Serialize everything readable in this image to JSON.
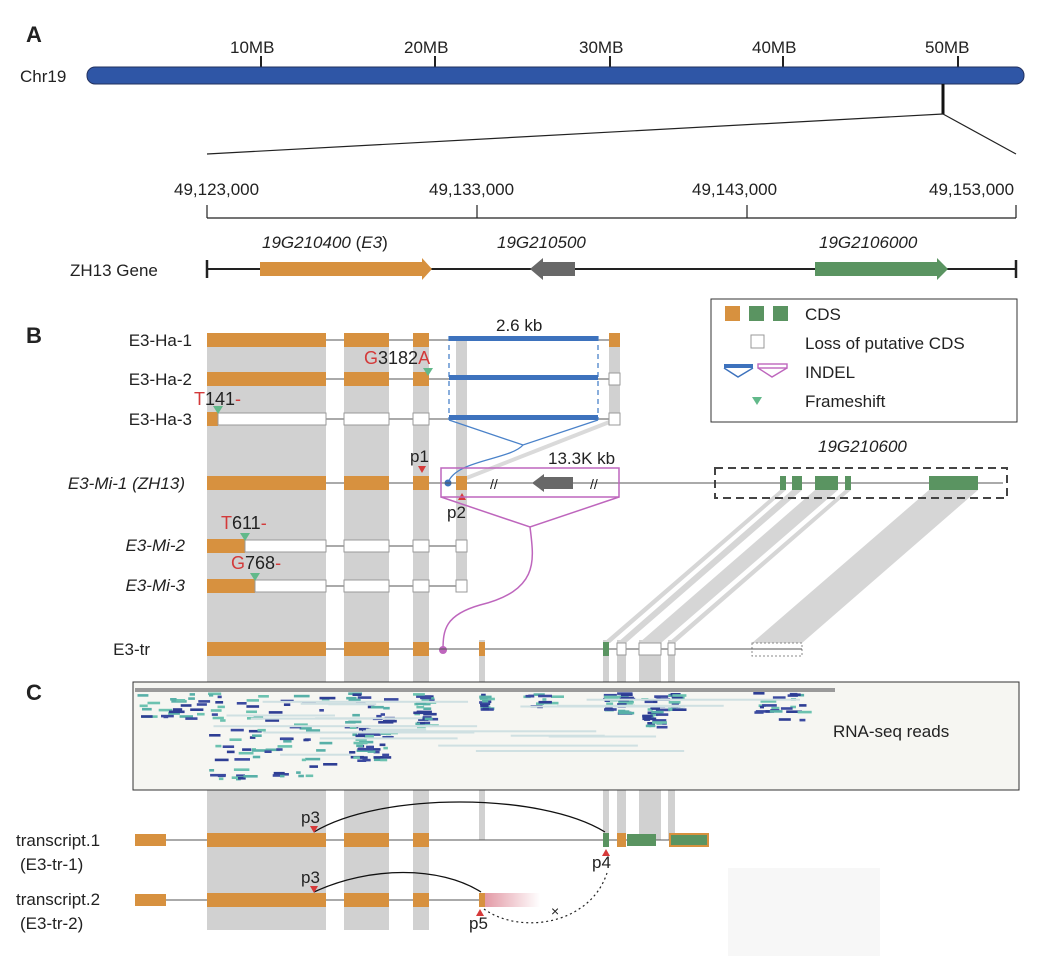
{
  "panels": {
    "a": "A",
    "b": "B",
    "c": "C"
  },
  "chromosome": {
    "name": "Chr19",
    "ticks": [
      "10MB",
      "20MB",
      "30MB",
      "40MB",
      "50MB"
    ]
  },
  "region": {
    "ticks": [
      "49,123,000",
      "49,133,000",
      "49,143,000",
      "49,153,000"
    ]
  },
  "genes": {
    "row_label": "ZH13 Gene",
    "e3_id": "19G210400",
    "e3_paren_open": " (",
    "e3_name": "E3",
    "e3_paren_close": ")",
    "g2": "19G210500",
    "g3": "19G2106000"
  },
  "haplotypes": [
    {
      "label": "E3-Ha-1",
      "italic": false,
      "pink": false
    },
    {
      "label": "E3-Ha-2",
      "italic": false,
      "pink": false
    },
    {
      "label": "E3-Ha-3",
      "italic": false,
      "pink": false
    },
    {
      "label": "E3-Mi-1 (ZH13)",
      "italic": true,
      "pink": true
    },
    {
      "label": "E3-Mi-2",
      "italic": true,
      "pink": false
    },
    {
      "label": "E3-Mi-3",
      "italic": true,
      "pink": false
    },
    {
      "label": "E3-tr",
      "italic": false,
      "pink": false
    }
  ],
  "mutations": [
    {
      "ref": "G",
      "pos": "3182",
      "alt": "A"
    },
    {
      "ref": "T",
      "pos": "141",
      "alt": "-"
    },
    {
      "ref": "T",
      "pos": "611",
      "alt": "-"
    },
    {
      "ref": "G",
      "pos": "768",
      "alt": "-"
    }
  ],
  "indels": {
    "blue_size": "2.6 kb",
    "pink_size": "13.3K kb",
    "gene_box": "19G210600"
  },
  "legend": {
    "cds": "CDS",
    "loss": "Loss of putative CDS",
    "indel": "INDEL",
    "frameshift": "Frameshift"
  },
  "points": {
    "p1": "p1",
    "p2": "p2",
    "p3": "p3",
    "p4": "p4",
    "p5": "p5"
  },
  "rnaseq": {
    "label": "RNA-seq reads"
  },
  "transcripts": [
    {
      "name": "transcript.1",
      "alias": "(E3-tr-1)"
    },
    {
      "name": "transcript.2",
      "alias": "(E3-tr-2)"
    }
  ],
  "colors": {
    "chromosome": "#2f56a6",
    "cds": "#d7913f",
    "green": "#5a9461",
    "dark_gene": "#686868",
    "indel_blue": "#3d72bd",
    "indel_pink": "#be66bd",
    "frameshift": "#62b98a",
    "mutation": "#d33a3a",
    "shade": "#d1d1d1",
    "pink_label": "#c55470"
  }
}
